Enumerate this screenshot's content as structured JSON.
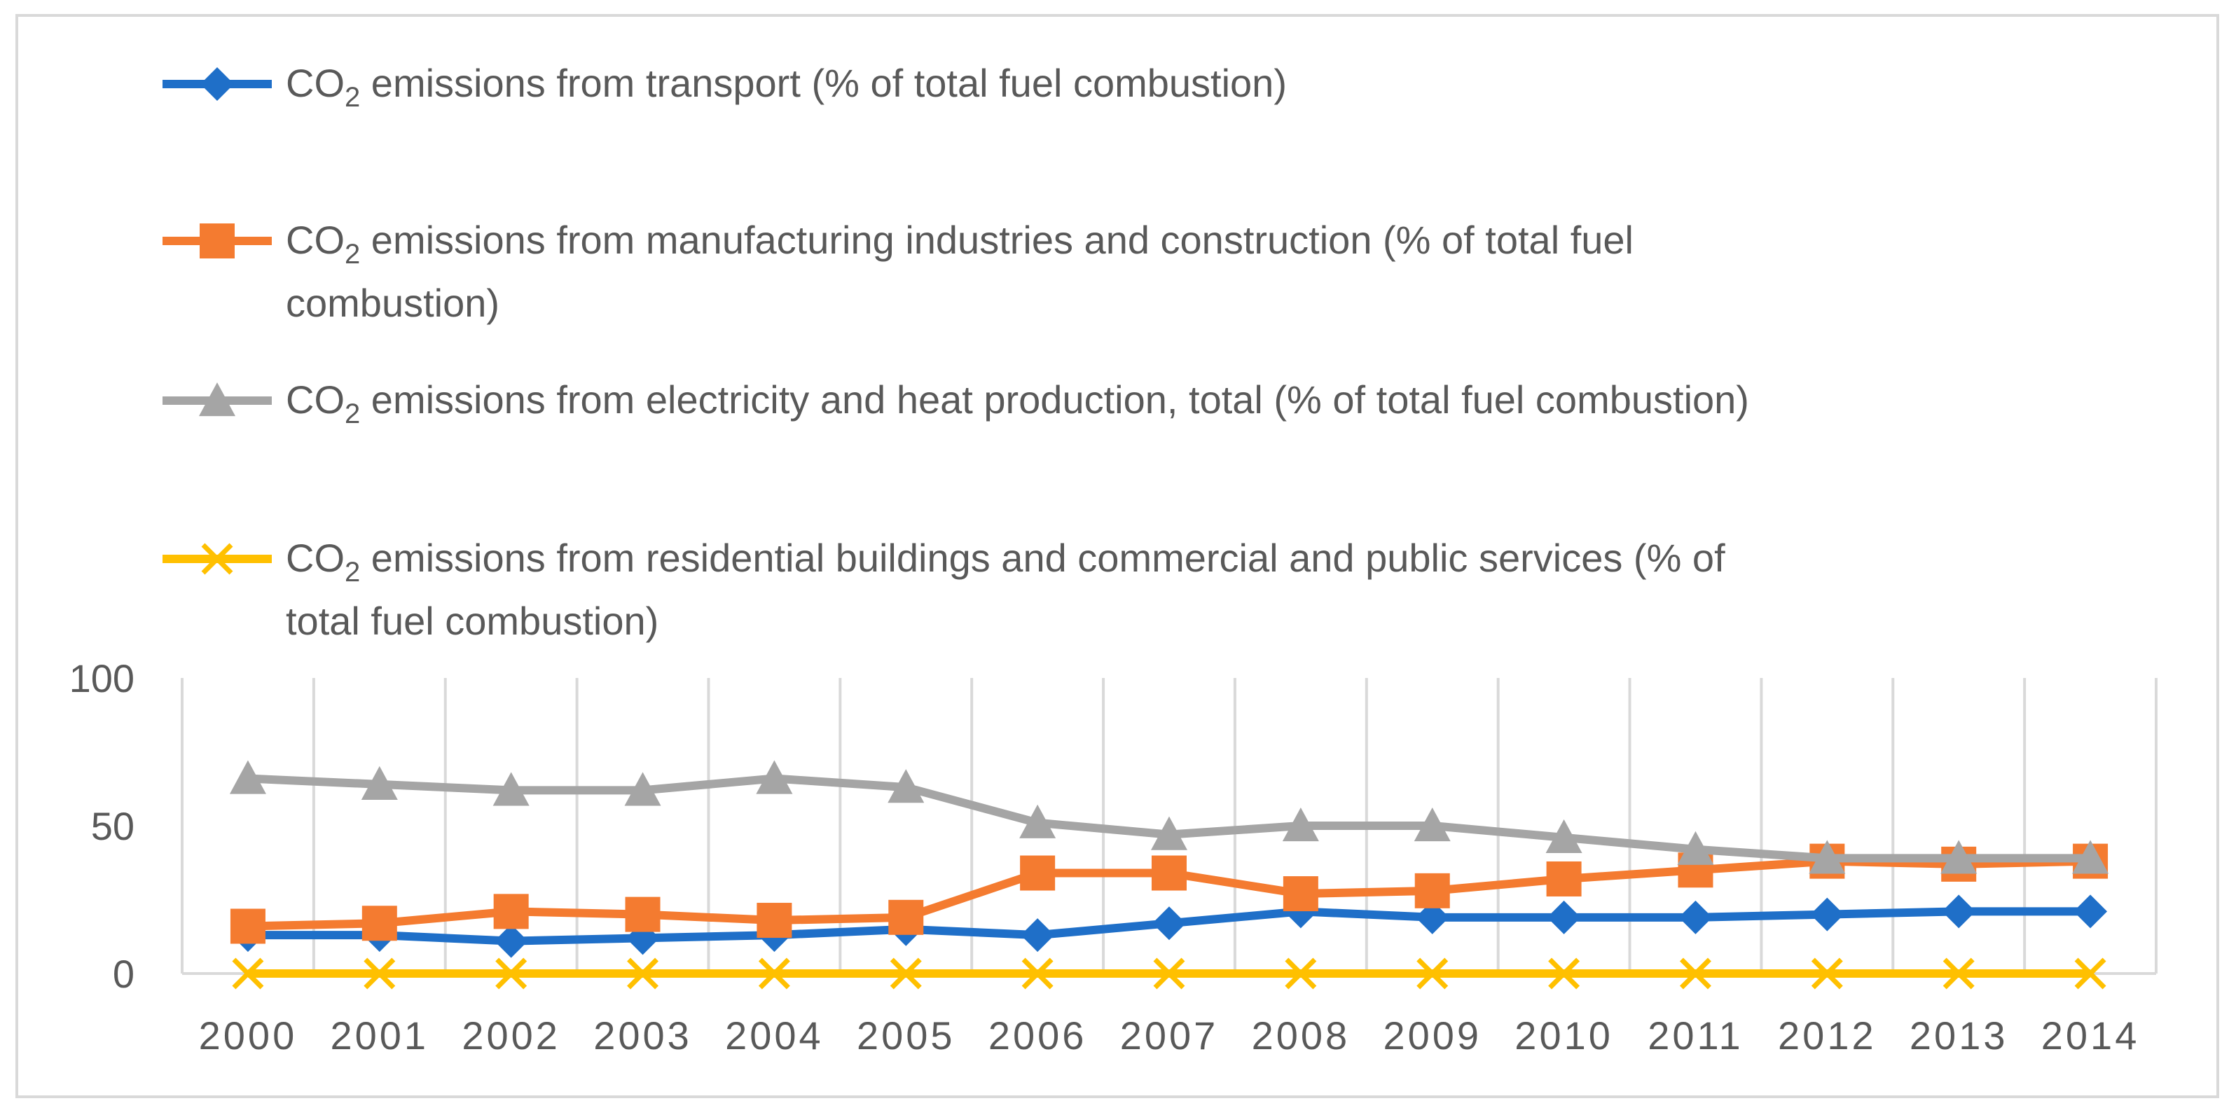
{
  "chart_data": {
    "type": "line",
    "title": "",
    "xlabel": "",
    "ylabel": "",
    "ylim": [
      0,
      100
    ],
    "y_ticks": [
      "0",
      "50",
      "100"
    ],
    "grid": "vertical",
    "legend_position": "top",
    "categories": [
      "2000",
      "2001",
      "2002",
      "2003",
      "2004",
      "2005",
      "2006",
      "2007",
      "2008",
      "2009",
      "2010",
      "2011",
      "2012",
      "2013",
      "2014"
    ],
    "series": [
      {
        "name": "CO2 emissions from transport (% of total fuel combustion)",
        "legend_lines": [
          [
            "CO",
            "2",
            " emissions from transport (% of total fuel combustion)"
          ]
        ],
        "color": "#1f6fc8",
        "marker": "diamond",
        "values": [
          13,
          13,
          11,
          12,
          13,
          15,
          13,
          17,
          21,
          19,
          19,
          19,
          20,
          21,
          21
        ]
      },
      {
        "name": "CO2 emissions from manufacturing industries and construction (% of total fuel combustion)",
        "legend_lines": [
          [
            "CO",
            "2",
            " emissions from manufacturing industries and construction (% of total fuel"
          ],
          [
            "",
            "",
            "combustion)"
          ]
        ],
        "color": "#f47b30",
        "marker": "square",
        "values": [
          16,
          17,
          21,
          20,
          18,
          19,
          34,
          34,
          27,
          28,
          32,
          35,
          38,
          37,
          38
        ]
      },
      {
        "name": "CO2 emissions from electricity and heat production, total (% of total fuel combustion)",
        "legend_lines": [
          [
            "CO",
            "2",
            " emissions from electricity and heat production, total (% of total fuel combustion)"
          ]
        ],
        "color": "#a5a5a5",
        "marker": "triangle",
        "values": [
          66,
          64,
          62,
          62,
          66,
          63,
          51,
          47,
          50,
          50,
          46,
          42,
          39,
          39,
          39
        ]
      },
      {
        "name": "CO2 emissions from residential buildings and commercial and public services (% of total fuel combustion)",
        "legend_lines": [
          [
            "CO",
            "2",
            " emissions from residential buildings and commercial and public services (% of"
          ],
          [
            "",
            "",
            "total fuel combustion)"
          ]
        ],
        "color": "#ffc000",
        "marker": "x",
        "values": [
          0,
          0,
          0,
          0,
          0,
          0,
          0,
          0,
          0,
          0,
          0,
          0,
          0,
          0,
          0
        ]
      }
    ]
  }
}
